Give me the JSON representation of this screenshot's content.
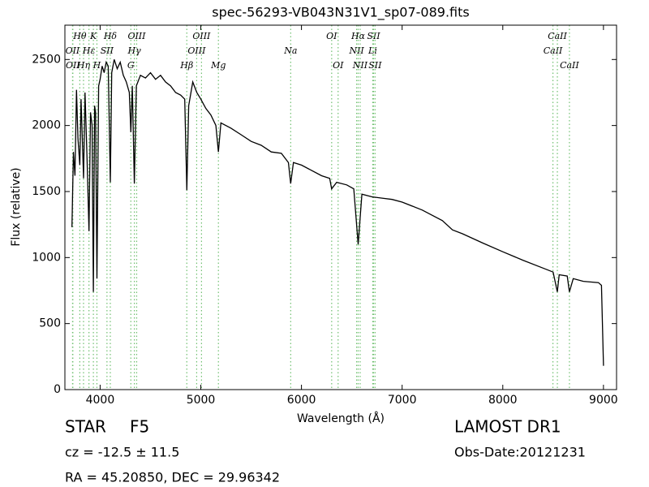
{
  "chart_data": {
    "type": "line",
    "title": "spec-56293-VB043N31V1_sp07-089.fits",
    "xlabel": "Wavelength (Å)",
    "ylabel": "Flux (relative)",
    "color": "#000000",
    "line_color": "#6fbf6f",
    "x": [
      3720,
      3735,
      3750,
      3765,
      3780,
      3798,
      3810,
      3835,
      3850,
      3870,
      3889,
      3905,
      3920,
      3933,
      3945,
      3955,
      3968,
      3985,
      4000,
      4020,
      4040,
      4060,
      4080,
      4101,
      4115,
      4140,
      4170,
      4200,
      4230,
      4260,
      4290,
      4305,
      4320,
      4340,
      4360,
      4400,
      4450,
      4500,
      4550,
      4600,
      4650,
      4700,
      4750,
      4800,
      4840,
      4861,
      4880,
      4920,
      4960,
      5000,
      5050,
      5100,
      5150,
      5175,
      5200,
      5300,
      5400,
      5500,
      5600,
      5700,
      5800,
      5870,
      5893,
      5920,
      6000,
      6100,
      6200,
      6280,
      6300,
      6350,
      6450,
      6520,
      6563,
      6600,
      6700,
      6800,
      6900,
      7000,
      7200,
      7400,
      7500,
      7600,
      7800,
      8000,
      8200,
      8400,
      8500,
      8542,
      8560,
      8640,
      8662,
      8700,
      8800,
      8950,
      8980,
      9000
    ],
    "values": [
      1230,
      1800,
      1620,
      2270,
      1900,
      1700,
      2200,
      1600,
      2250,
      1750,
      1200,
      2100,
      2000,
      740,
      2150,
      2100,
      840,
      2300,
      2350,
      2450,
      2400,
      2480,
      2450,
      1570,
      2400,
      2500,
      2430,
      2480,
      2380,
      2330,
      2250,
      1950,
      2300,
      1560,
      2300,
      2380,
      2360,
      2400,
      2350,
      2380,
      2330,
      2300,
      2250,
      2230,
      2200,
      1510,
      2150,
      2330,
      2250,
      2200,
      2130,
      2080,
      2000,
      1800,
      2020,
      1980,
      1930,
      1880,
      1850,
      1800,
      1790,
      1720,
      1560,
      1720,
      1700,
      1660,
      1620,
      1600,
      1520,
      1570,
      1550,
      1520,
      1100,
      1480,
      1460,
      1450,
      1440,
      1420,
      1360,
      1280,
      1210,
      1180,
      1110,
      1044,
      980,
      920,
      890,
      740,
      870,
      860,
      740,
      840,
      820,
      810,
      790,
      180
    ],
    "xlim": [
      3650,
      9130
    ],
    "ylim": [
      0,
      2760
    ],
    "xticks": [
      4000,
      5000,
      6000,
      7000,
      8000,
      9000
    ],
    "yticks": [
      0,
      500,
      1000,
      1500,
      2000,
      2500
    ],
    "lines": [
      {
        "wavelength": 3726,
        "label": "OII"
      },
      {
        "wavelength": 3729,
        "label": "OII"
      },
      {
        "wavelength": 3798,
        "label": "Hθ"
      },
      {
        "wavelength": 3835,
        "label": "Hη"
      },
      {
        "wavelength": 3889,
        "label": "Hε"
      },
      {
        "wavelength": 3933,
        "label": "K"
      },
      {
        "wavelength": 3968,
        "label": "H"
      },
      {
        "wavelength": 4068,
        "label": "SII"
      },
      {
        "wavelength": 4101,
        "label": "Hδ"
      },
      {
        "wavelength": 4305,
        "label": "G"
      },
      {
        "wavelength": 4340,
        "label": "Hγ"
      },
      {
        "wavelength": 4363,
        "label": "OIII"
      },
      {
        "wavelength": 4861,
        "label": "Hβ"
      },
      {
        "wavelength": 4959,
        "label": "OIII"
      },
      {
        "wavelength": 5007,
        "label": "OIII"
      },
      {
        "wavelength": 5175,
        "label": "Mg"
      },
      {
        "wavelength": 5893,
        "label": "Na"
      },
      {
        "wavelength": 6300,
        "label": "OI"
      },
      {
        "wavelength": 6364,
        "label": "OI"
      },
      {
        "wavelength": 6548,
        "label": "NII"
      },
      {
        "wavelength": 6563,
        "label": "Hα"
      },
      {
        "wavelength": 6583,
        "label": "NII"
      },
      {
        "wavelength": 6708,
        "label": "Li"
      },
      {
        "wavelength": 6716,
        "label": "SII"
      },
      {
        "wavelength": 6731,
        "label": "SII"
      },
      {
        "wavelength": 8498,
        "label": "CaII"
      },
      {
        "wavelength": 8542,
        "label": "CaII"
      },
      {
        "wavelength": 8662,
        "label": "CaII"
      }
    ],
    "annotations": {
      "object": "STAR",
      "subclass": "F5",
      "cz": "cz = -12.5 ± 11.5",
      "coords": "RA = 45.20850, DEC = 29.96342",
      "survey": "LAMOST DR1",
      "date": "Obs-Date:20121231"
    }
  }
}
